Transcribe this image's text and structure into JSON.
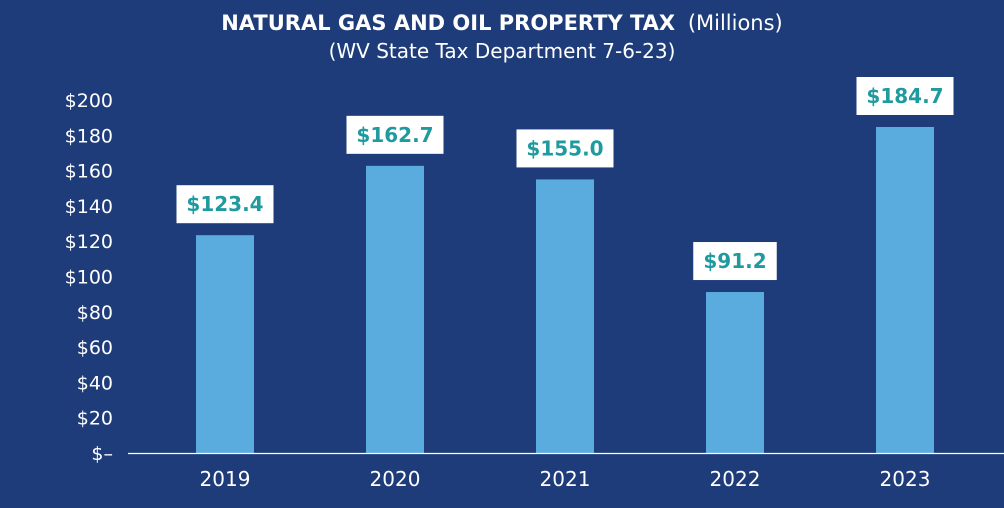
{
  "chart_data": {
    "type": "bar",
    "title": "NATURAL GAS AND OIL PROPERTY TAX",
    "title_suffix": "(Millions)",
    "subtitle": "(WV State Tax Department 7-6-23)",
    "categories": [
      "2019",
      "2020",
      "2021",
      "2022",
      "2023"
    ],
    "values": [
      123.4,
      162.7,
      155.0,
      91.2,
      184.7
    ],
    "data_labels": [
      "$123.4",
      "$162.7",
      "$155.0",
      "$91.2",
      "$184.7"
    ],
    "y_ticks": [
      {
        "value": 0,
        "label": "$–"
      },
      {
        "value": 20,
        "label": "$20"
      },
      {
        "value": 40,
        "label": "$40"
      },
      {
        "value": 60,
        "label": "$60"
      },
      {
        "value": 80,
        "label": "$80"
      },
      {
        "value": 100,
        "label": "$100"
      },
      {
        "value": 120,
        "label": "$120"
      },
      {
        "value": 140,
        "label": "$140"
      },
      {
        "value": 160,
        "label": "$160"
      },
      {
        "value": 180,
        "label": "$180"
      },
      {
        "value": 200,
        "label": "$200"
      }
    ],
    "ylim": [
      0,
      200
    ],
    "grid": false,
    "legend": "none",
    "colors": {
      "background": "#1f3c7a",
      "bar": "#5aacdf",
      "label_box": "#ffffff",
      "label_text": "#1f9a9e",
      "text": "#ffffff",
      "axis": "#ffffff"
    }
  }
}
